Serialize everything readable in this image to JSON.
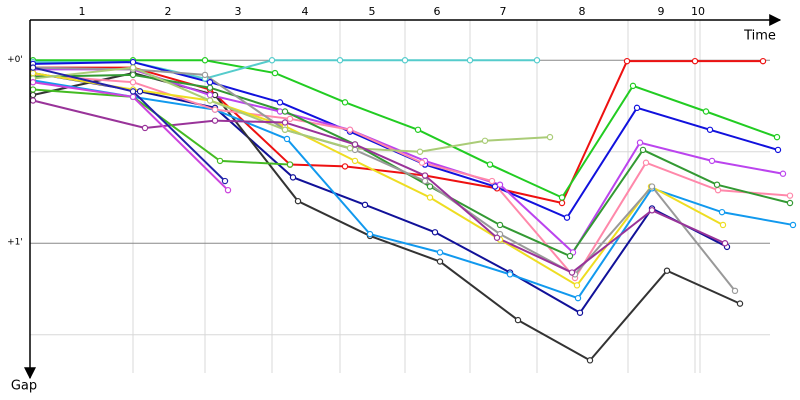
{
  "chart_data": {
    "type": "line",
    "x_label": "Time",
    "y_label": "Gap",
    "xlim": [
      0,
      750
    ],
    "ylim": [
      -0.22,
      1.72
    ],
    "y_reversed": true,
    "grid": true,
    "xticks": [
      {
        "value": 52,
        "label": "1"
      },
      {
        "value": 138,
        "label": "2"
      },
      {
        "value": 208,
        "label": "3"
      },
      {
        "value": 275,
        "label": "4"
      },
      {
        "value": 342,
        "label": "5"
      },
      {
        "value": 407,
        "label": "6"
      },
      {
        "value": 473,
        "label": "7"
      },
      {
        "value": 552,
        "label": "8"
      },
      {
        "value": 631,
        "label": "9"
      },
      {
        "value": 668,
        "label": "10"
      }
    ],
    "xgrid": [
      103,
      175,
      242,
      310,
      375,
      440,
      507,
      598,
      665,
      670
    ],
    "yticks": [
      {
        "value": 0,
        "label": "+0'"
      },
      {
        "value": 1,
        "label": "+1'"
      }
    ],
    "minor_yticks": [
      0.5,
      1.5
    ],
    "series": [
      {
        "color": "#ee1111",
        "x": [
          3,
          103,
          180,
          260,
          315,
          395,
          467,
          532,
          597,
          665,
          733
        ],
        "values": [
          0.04,
          0.04,
          0.16,
          0.57,
          0.58,
          0.63,
          0.7,
          0.78,
          0.005,
          0.005,
          0.005
        ]
      },
      {
        "color": "#22cc22",
        "x": [
          3,
          103,
          175,
          245,
          315,
          388,
          460,
          532,
          603,
          676,
          747
        ],
        "values": [
          0,
          0,
          0,
          0.07,
          0.23,
          0.38,
          0.57,
          0.75,
          0.14,
          0.28,
          0.42
        ]
      },
      {
        "color": "#55cccc",
        "x": [
          3,
          103,
          175,
          242,
          310,
          375,
          440,
          507
        ],
        "values": [
          0.01,
          0.01,
          0.1,
          0,
          0,
          0,
          0,
          0
        ]
      },
      {
        "color": "#1111dd",
        "x": [
          3,
          103,
          180,
          250,
          320,
          395,
          465,
          537,
          607,
          680,
          748
        ],
        "values": [
          0.02,
          0.01,
          0.12,
          0.23,
          0.39,
          0.57,
          0.69,
          0.86,
          0.26,
          0.38,
          0.49
        ]
      },
      {
        "color": "#111199",
        "x": [
          3,
          110,
          185,
          263,
          335,
          405,
          480,
          550,
          622,
          697
        ],
        "values": [
          0.07,
          0.17,
          0.26,
          0.64,
          0.79,
          0.94,
          1.16,
          1.38,
          0.81,
          1.02
        ]
      },
      {
        "color": "#333333",
        "x": [
          3,
          103,
          185,
          268,
          340,
          410,
          488,
          560,
          637,
          710
        ],
        "values": [
          0.19,
          0.07,
          0.19,
          0.77,
          0.96,
          1.1,
          1.42,
          1.64,
          1.15,
          1.33
        ]
      },
      {
        "color": "#1199ee",
        "x": [
          3,
          103,
          185,
          257,
          340,
          410,
          480,
          548,
          622,
          692,
          763
        ],
        "values": [
          0.11,
          0.2,
          0.27,
          0.43,
          0.95,
          1.05,
          1.17,
          1.3,
          0.7,
          0.83,
          0.9
        ]
      },
      {
        "color": "#bb44ee",
        "x": [
          3,
          103,
          180,
          250,
          320,
          395,
          470,
          543,
          610,
          682,
          753
        ],
        "values": [
          0.05,
          0.05,
          0.19,
          0.28,
          0.38,
          0.55,
          0.68,
          1.05,
          0.45,
          0.55,
          0.62
        ]
      },
      {
        "color": "#ff88aa",
        "x": [
          3,
          103,
          185,
          260,
          320,
          392,
          462,
          545,
          616,
          688,
          760
        ],
        "values": [
          0.08,
          0.12,
          0.27,
          0.32,
          0.38,
          0.56,
          0.66,
          1.19,
          0.56,
          0.71,
          0.74
        ]
      },
      {
        "color": "#339933",
        "x": [
          3,
          103,
          180,
          255,
          325,
          400,
          470,
          540,
          613,
          687,
          760
        ],
        "values": [
          0.09,
          0.08,
          0.15,
          0.28,
          0.46,
          0.69,
          0.9,
          1.07,
          0.49,
          0.68,
          0.78
        ]
      },
      {
        "color": "#eedd22",
        "x": [
          3,
          103,
          180,
          255,
          325,
          400,
          470,
          547,
          621,
          693
        ],
        "values": [
          0.07,
          0.16,
          0.22,
          0.36,
          0.55,
          0.75,
          0.98,
          1.23,
          0.69,
          0.9
        ]
      },
      {
        "color": "#999999",
        "x": [
          3,
          103,
          175,
          255,
          325,
          395,
          470,
          545,
          622,
          705
        ],
        "values": [
          0.04,
          0.05,
          0.08,
          0.38,
          0.49,
          0.66,
          0.95,
          1.17,
          0.69,
          1.26
        ]
      },
      {
        "color": "#aacc77",
        "x": [
          3,
          103,
          180,
          255,
          320,
          390,
          455,
          520
        ],
        "values": [
          0.1,
          0.04,
          0.22,
          0.38,
          0.48,
          0.5,
          0.44,
          0.42
        ]
      },
      {
        "color": "#993399",
        "x": [
          3,
          115,
          185,
          255,
          325,
          395,
          467,
          542,
          622,
          695
        ],
        "values": [
          0.22,
          0.37,
          0.33,
          0.34,
          0.46,
          0.63,
          0.97,
          1.16,
          0.82,
          1.0
        ]
      },
      {
        "color": "#44bb22",
        "x": [
          3,
          103,
          190,
          260
        ],
        "values": [
          0.16,
          0.2,
          0.55,
          0.57
        ]
      },
      {
        "color": "#cc44dd",
        "x": [
          3,
          103,
          198
        ],
        "values": [
          0.12,
          0.2,
          0.71
        ]
      },
      {
        "color": "#2222aa",
        "x": [
          3,
          103,
          195
        ],
        "values": [
          0.04,
          0.17,
          0.66
        ]
      }
    ]
  }
}
